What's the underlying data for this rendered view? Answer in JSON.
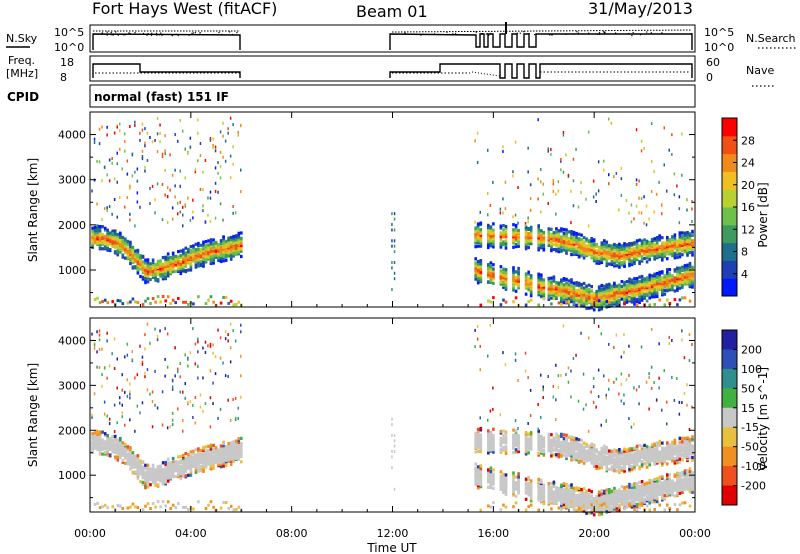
{
  "header": {
    "station": "Fort Hays West (fitACF)",
    "beam": "Beam 01",
    "date": "31/May/2013"
  },
  "strip_labels": {
    "nsky": "N.Sky",
    "nsearch": "N.Search",
    "freq": "Freq.",
    "freq_unit": "[MHz]",
    "nave": "Nave",
    "cpid": "CPID",
    "cpid_value": "normal (fast) 151 IF"
  },
  "strip_ticks": {
    "noise_left": [
      "10^5",
      "10^0"
    ],
    "noise_right": [
      "10^5",
      "10^0"
    ],
    "freq_left": [
      "18",
      "8"
    ],
    "nave_right": [
      "60",
      "0"
    ]
  },
  "colors": {
    "power": [
      "#0018ff",
      "#1f3fb4",
      "#1d6f8c",
      "#3f9a5e",
      "#6fc04a",
      "#b8d030",
      "#f0c020",
      "#f08a1a",
      "#f05014",
      "#ff0000"
    ],
    "velocity_pos": [
      "#2020a0",
      "#2c4fb8",
      "#2f8f8f",
      "#40b040"
    ],
    "velocity_ground": "#c8c8c8",
    "velocity_neg": [
      "#e8c040",
      "#f09020",
      "#f05020",
      "#e00000"
    ]
  },
  "chart_data": [
    {
      "type": "heatmap",
      "name": "power",
      "ylabel": "Slant Range [km]",
      "xlim": [
        "00:00",
        "24:00"
      ],
      "ylim": [
        180,
        4500
      ],
      "y_ticks": [
        1000,
        2000,
        3000,
        4000
      ],
      "colorbar": {
        "label": "Power [dB]",
        "range": [
          0,
          32
        ],
        "ticks": [
          4,
          8,
          12,
          16,
          20,
          24,
          28
        ]
      },
      "echo_bands_km": [
        {
          "hours": [
            0,
            0.6,
            1.2,
            1.8,
            2.2,
            2.8,
            3.5,
            4.2,
            5,
            6
          ],
          "range": [
            1750,
            1720,
            1600,
            1250,
            1000,
            1080,
            1200,
            1350,
            1480,
            1600
          ]
        },
        {
          "hours": [
            15.2,
            16,
            17,
            18,
            19,
            20,
            21,
            22,
            23,
            24
          ],
          "range": [
            1820,
            1800,
            1780,
            1750,
            1650,
            1450,
            1350,
            1480,
            1560,
            1650
          ]
        },
        {
          "hours": [
            15.2,
            16,
            17,
            18,
            19,
            20,
            21,
            22,
            23,
            24
          ],
          "range": [
            1050,
            900,
            800,
            650,
            560,
            400,
            520,
            650,
            800,
            950
          ]
        }
      ]
    },
    {
      "type": "heatmap",
      "name": "velocity",
      "ylabel": "Slant Range [km]",
      "xlabel": "Time UT",
      "xlim": [
        "00:00",
        "24:00"
      ],
      "x_ticks": [
        "00:00",
        "04:00",
        "08:00",
        "12:00",
        "16:00",
        "20:00",
        "00:00"
      ],
      "ylim": [
        180,
        4500
      ],
      "y_ticks": [
        1000,
        2000,
        3000,
        4000
      ],
      "colorbar": {
        "label": "Velocity [m s^-1]",
        "ticks": [
          "200",
          "100",
          "50",
          "15",
          "-15",
          "-50",
          "-100",
          "-200"
        ]
      }
    }
  ]
}
